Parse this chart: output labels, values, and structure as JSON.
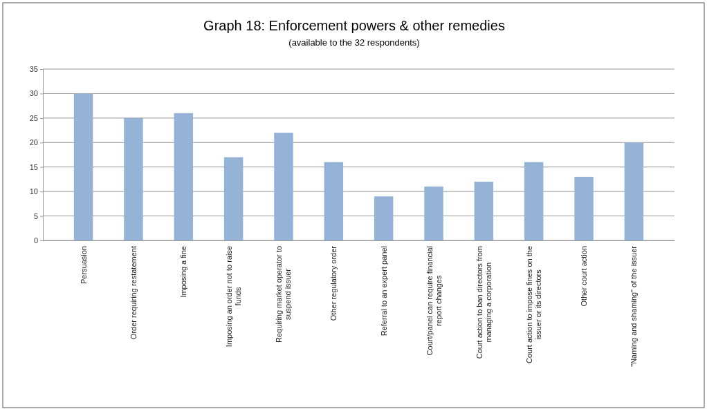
{
  "chart_data": {
    "type": "bar",
    "title": "Graph 18: Enforcement powers & other remedies",
    "subtitle": "(available to the 32 respondents)",
    "categories": [
      "Persuasion",
      "Order requiring restatement",
      "Imposing a fine",
      "Imposing an order not to raise funds",
      "Requiring market operator to suspend issuer",
      "Other regulatory order",
      "Referral to an expert panel",
      "Court/panel can require financial report changes",
      "Court action to ban directors from managing a corporation",
      "Court action to impose fines on the issuer or its directors",
      "Other court action",
      "\"Naming and shaming\" of the issuer"
    ],
    "values": [
      30,
      25,
      26,
      17,
      22,
      16,
      9,
      11,
      12,
      16,
      13,
      20
    ],
    "color": "#95b3d7",
    "ylim": [
      0,
      35
    ],
    "yticks": [
      0,
      5,
      10,
      15,
      20,
      25,
      30,
      35
    ],
    "grid": "y"
  }
}
